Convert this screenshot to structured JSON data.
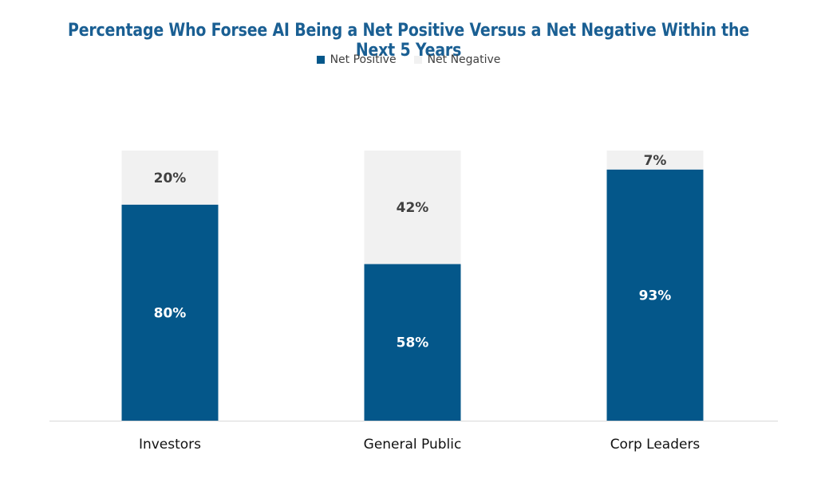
{
  "chart_data": {
    "type": "bar",
    "stacked": true,
    "title": "Percentage Who Forsee AI Being a Net Positive Versus a Net Negative Within the Next 5 Years",
    "categories": [
      "Investors",
      "General Public",
      "Corp Leaders"
    ],
    "series": [
      {
        "name": "Net Positive",
        "values": [
          80,
          58,
          93
        ],
        "color": "#04578a",
        "label_color": "#ffffff"
      },
      {
        "name": "Net Negative",
        "values": [
          20,
          42,
          7
        ],
        "color": "#f1f1f1",
        "label_color": "#404040"
      }
    ],
    "value_suffix": "%",
    "ylim": [
      0,
      100
    ],
    "legend_position": "top-center",
    "grid": false
  },
  "colors": {
    "title": "#1a5f93",
    "axis": "#d9d9d9"
  }
}
